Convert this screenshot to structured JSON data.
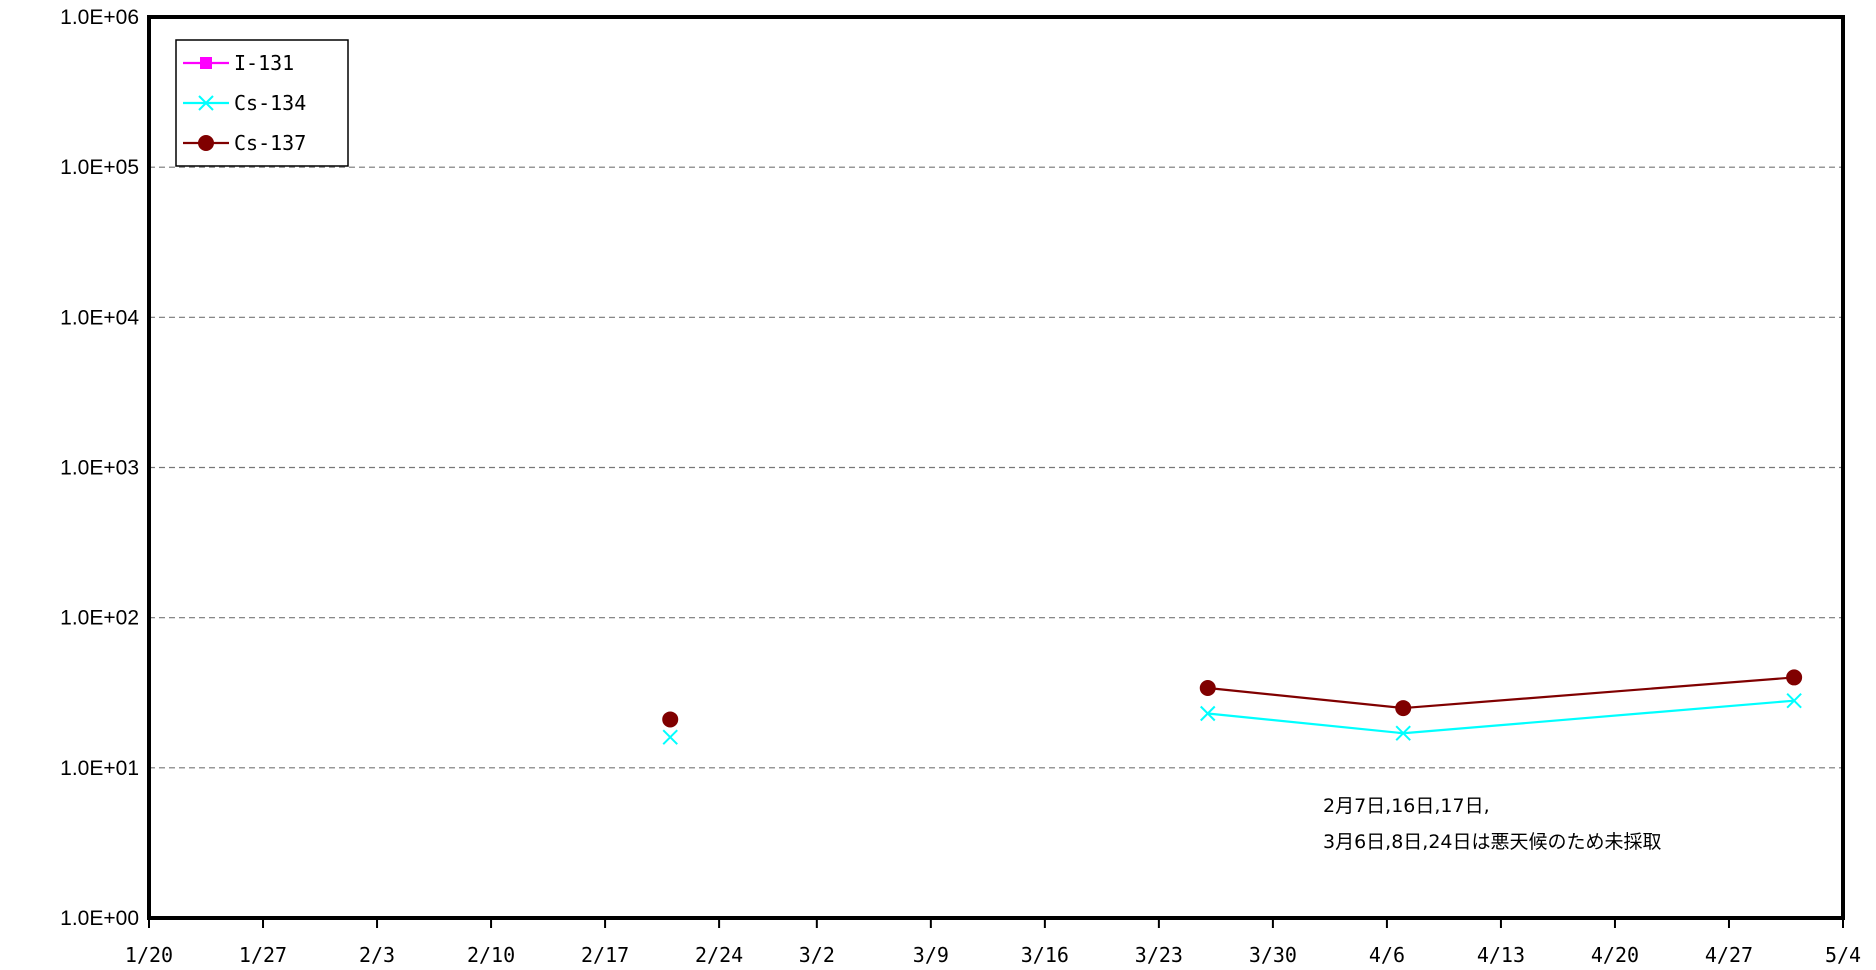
{
  "chart_data": {
    "type": "line",
    "title": "",
    "xlabel": "",
    "ylabel": "",
    "x_axis": {
      "type": "date",
      "range": [
        "1/20",
        "5/4"
      ],
      "tick_labels": [
        "1/20",
        "1/27",
        "2/3",
        "2/10",
        "2/17",
        "2/24",
        "3/2",
        "3/9",
        "3/16",
        "3/23",
        "3/30",
        "4/6",
        "4/13",
        "4/20",
        "4/27",
        "5/4"
      ]
    },
    "y_axis": {
      "scale": "log",
      "range": [
        1,
        1000000
      ],
      "tick_labels": [
        "1.0E+00",
        "1.0E+01",
        "1.0E+02",
        "1.0E+03",
        "1.0E+04",
        "1.0E+05",
        "1.0E+06"
      ]
    },
    "grid": "horizontal dashed",
    "legend_position": "top-left",
    "series": [
      {
        "name": "I-131",
        "color": "#ff00ff",
        "marker": "square",
        "points": []
      },
      {
        "name": "Cs-134",
        "color": "#00ffff",
        "marker": "x",
        "points": [
          {
            "x": "2/21",
            "y": 16
          },
          {
            "x": "3/26",
            "y": 23
          },
          {
            "x": "4/7",
            "y": 17
          },
          {
            "x": "5/1",
            "y": 28
          }
        ],
        "segments": [
          [
            1,
            2
          ],
          [
            2,
            3
          ]
        ]
      },
      {
        "name": "Cs-137",
        "color": "#800000",
        "marker": "circle",
        "points": [
          {
            "x": "2/21",
            "y": 21
          },
          {
            "x": "3/26",
            "y": 34
          },
          {
            "x": "4/7",
            "y": 25
          },
          {
            "x": "5/1",
            "y": 40
          }
        ],
        "segments": [
          [
            1,
            2
          ],
          [
            2,
            3
          ]
        ]
      }
    ],
    "annotation": [
      "2月7日,16日,17日,",
      "3月6日,8日,24日は悪天候のため未採取"
    ]
  }
}
